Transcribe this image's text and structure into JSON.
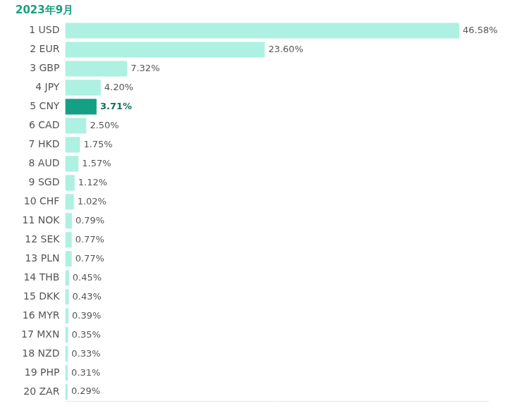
{
  "chart_data": {
    "type": "bar",
    "title": "2023年9月",
    "orientation": "horizontal",
    "categories": [
      "1 USD",
      "2 EUR",
      "3 GBP",
      "4 JPY",
      "5 CNY",
      "6 CAD",
      "7 HKD",
      "8 AUD",
      "9 SGD",
      "10 CHF",
      "11 NOK",
      "12 SEK",
      "13 PLN",
      "14 THB",
      "15 DKK",
      "16 MYR",
      "17 MXN",
      "18 NZD",
      "19 PHP",
      "20 ZAR"
    ],
    "values": [
      46.58,
      23.6,
      7.32,
      4.2,
      3.71,
      2.5,
      1.75,
      1.57,
      1.12,
      1.02,
      0.79,
      0.77,
      0.77,
      0.45,
      0.43,
      0.39,
      0.35,
      0.33,
      0.31,
      0.29
    ],
    "value_labels": [
      "46.58%",
      "23.60%",
      "7.32%",
      "4.20%",
      "3.71%",
      "2.50%",
      "1.75%",
      "1.57%",
      "1.12%",
      "1.02%",
      "0.79%",
      "0.77%",
      "0.77%",
      "0.45%",
      "0.43%",
      "0.39%",
      "0.35%",
      "0.33%",
      "0.31%",
      "0.29%"
    ],
    "colors": [
      "#aef0e1",
      "#aef0e1",
      "#aef0e1",
      "#aef0e1",
      "#14a085",
      "#aef0e1",
      "#aef0e1",
      "#aef0e1",
      "#aef0e1",
      "#aef0e1",
      "#aef0e1",
      "#aef0e1",
      "#aef0e1",
      "#aef0e1",
      "#aef0e1",
      "#aef0e1",
      "#aef0e1",
      "#aef0e1",
      "#aef0e1",
      "#aef0e1"
    ],
    "xlim": [
      0,
      50
    ],
    "grid": false,
    "data_labels": true,
    "tick_labels": "y"
  }
}
